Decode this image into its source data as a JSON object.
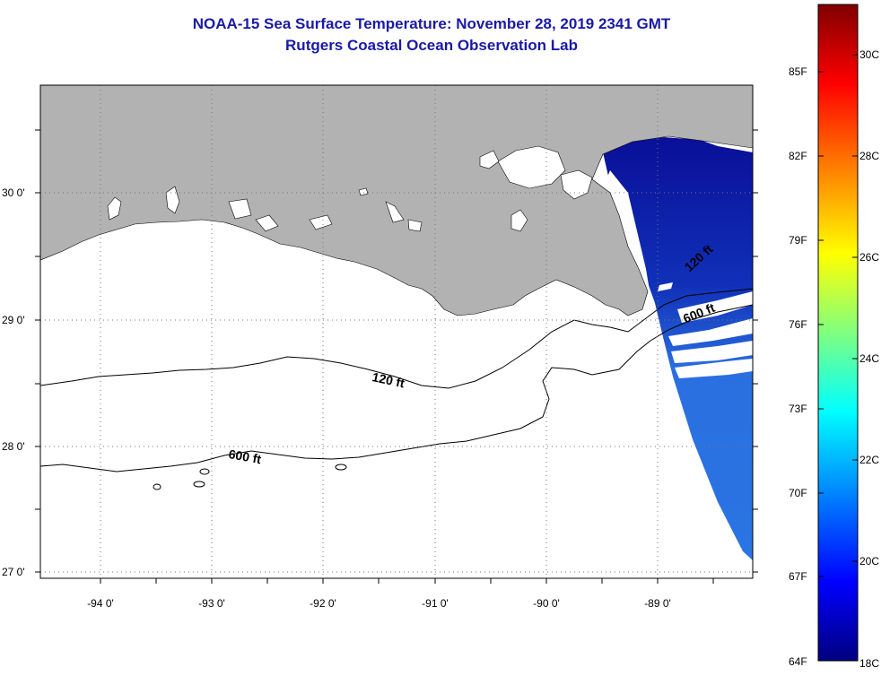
{
  "header": {
    "title": "NOAA-15 Sea Surface Temperature:  November 28, 2019 2341 GMT",
    "subtitle": "Rutgers Coastal Ocean Observation Lab"
  },
  "map": {
    "longitude_labels": [
      "-94 0'",
      "-93 0'",
      "-92 0'",
      "-91 0'",
      "-90 0'",
      "-89 0'"
    ],
    "latitude_labels": [
      "30 0'",
      "29 0'",
      "28 0'",
      "27 0'"
    ],
    "contour_labels": {
      "c120_right": "120 ft",
      "c120_left": "120 ft",
      "c600_right": "600 ft",
      "c600_left": "600 ft"
    },
    "colors": {
      "land": "#b2b2b2",
      "no_data": "#ffffff",
      "sst_cold": "#0d14a3",
      "sst_mid": "#2f7fe6"
    }
  },
  "colorbar": {
    "fahrenheit_labels": [
      "85F",
      "82F",
      "79F",
      "76F",
      "73F",
      "70F",
      "67F",
      "64F"
    ],
    "celsius_labels": [
      "30C",
      "28C",
      "26C",
      "24C",
      "22C",
      "20C",
      "18C"
    ],
    "range_c": [
      18,
      31
    ],
    "range_f": [
      64,
      88
    ]
  }
}
